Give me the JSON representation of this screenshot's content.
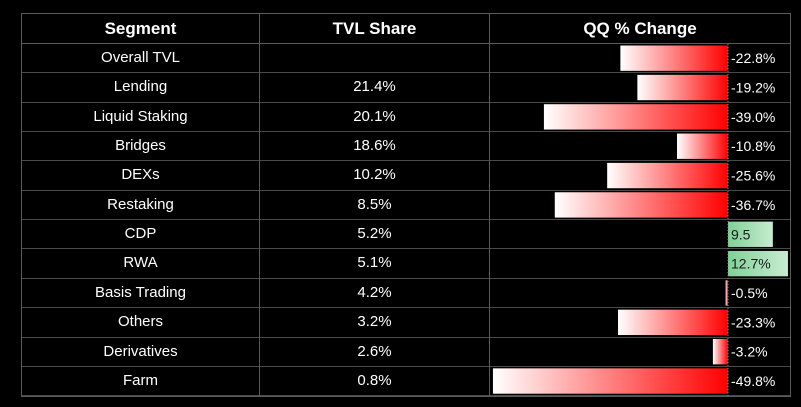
{
  "table": {
    "headers": {
      "segment": "Segment",
      "tvl_share": "TVL Share",
      "qq_change": "QQ % Change"
    }
  },
  "chart_data": {
    "type": "table",
    "columns": [
      "Segment",
      "TVL Share",
      "QQ % Change"
    ],
    "rows": [
      {
        "segment": "Overall TVL",
        "tvl_share": "",
        "change": -22.8,
        "change_label": "-22.8%"
      },
      {
        "segment": "Lending",
        "tvl_share": "21.4%",
        "change": -19.2,
        "change_label": "-19.2%"
      },
      {
        "segment": "Liquid Staking",
        "tvl_share": "20.1%",
        "change": -39.0,
        "change_label": "-39.0%"
      },
      {
        "segment": "Bridges",
        "tvl_share": "18.6%",
        "change": -10.8,
        "change_label": "-10.8%"
      },
      {
        "segment": "DEXs",
        "tvl_share": "10.2%",
        "change": -25.6,
        "change_label": "-25.6%"
      },
      {
        "segment": "Restaking",
        "tvl_share": "8.5%",
        "change": -36.7,
        "change_label": "-36.7%"
      },
      {
        "segment": "CDP",
        "tvl_share": "5.2%",
        "change": 9.5,
        "change_label": "9.5"
      },
      {
        "segment": "RWA",
        "tvl_share": "5.1%",
        "change": 12.7,
        "change_label": "12.7%"
      },
      {
        "segment": "Basis Trading",
        "tvl_share": "4.2%",
        "change": -0.5,
        "change_label": "-0.5%"
      },
      {
        "segment": "Others",
        "tvl_share": "3.2%",
        "change": -23.3,
        "change_label": "-23.3%"
      },
      {
        "segment": "Derivatives",
        "tvl_share": "2.6%",
        "change": -3.2,
        "change_label": "-3.2%"
      },
      {
        "segment": "Farm",
        "tvl_share": "0.8%",
        "change": -49.8,
        "change_label": "-49.8%"
      }
    ],
    "colors": {
      "negative_bar": "#ff0000",
      "negative_bar_light": "#ffffff",
      "positive_bar": "#7fd197",
      "positive_bar_light": "#c9ecd2",
      "background": "#000000",
      "grid": "#5a5a5a"
    }
  }
}
